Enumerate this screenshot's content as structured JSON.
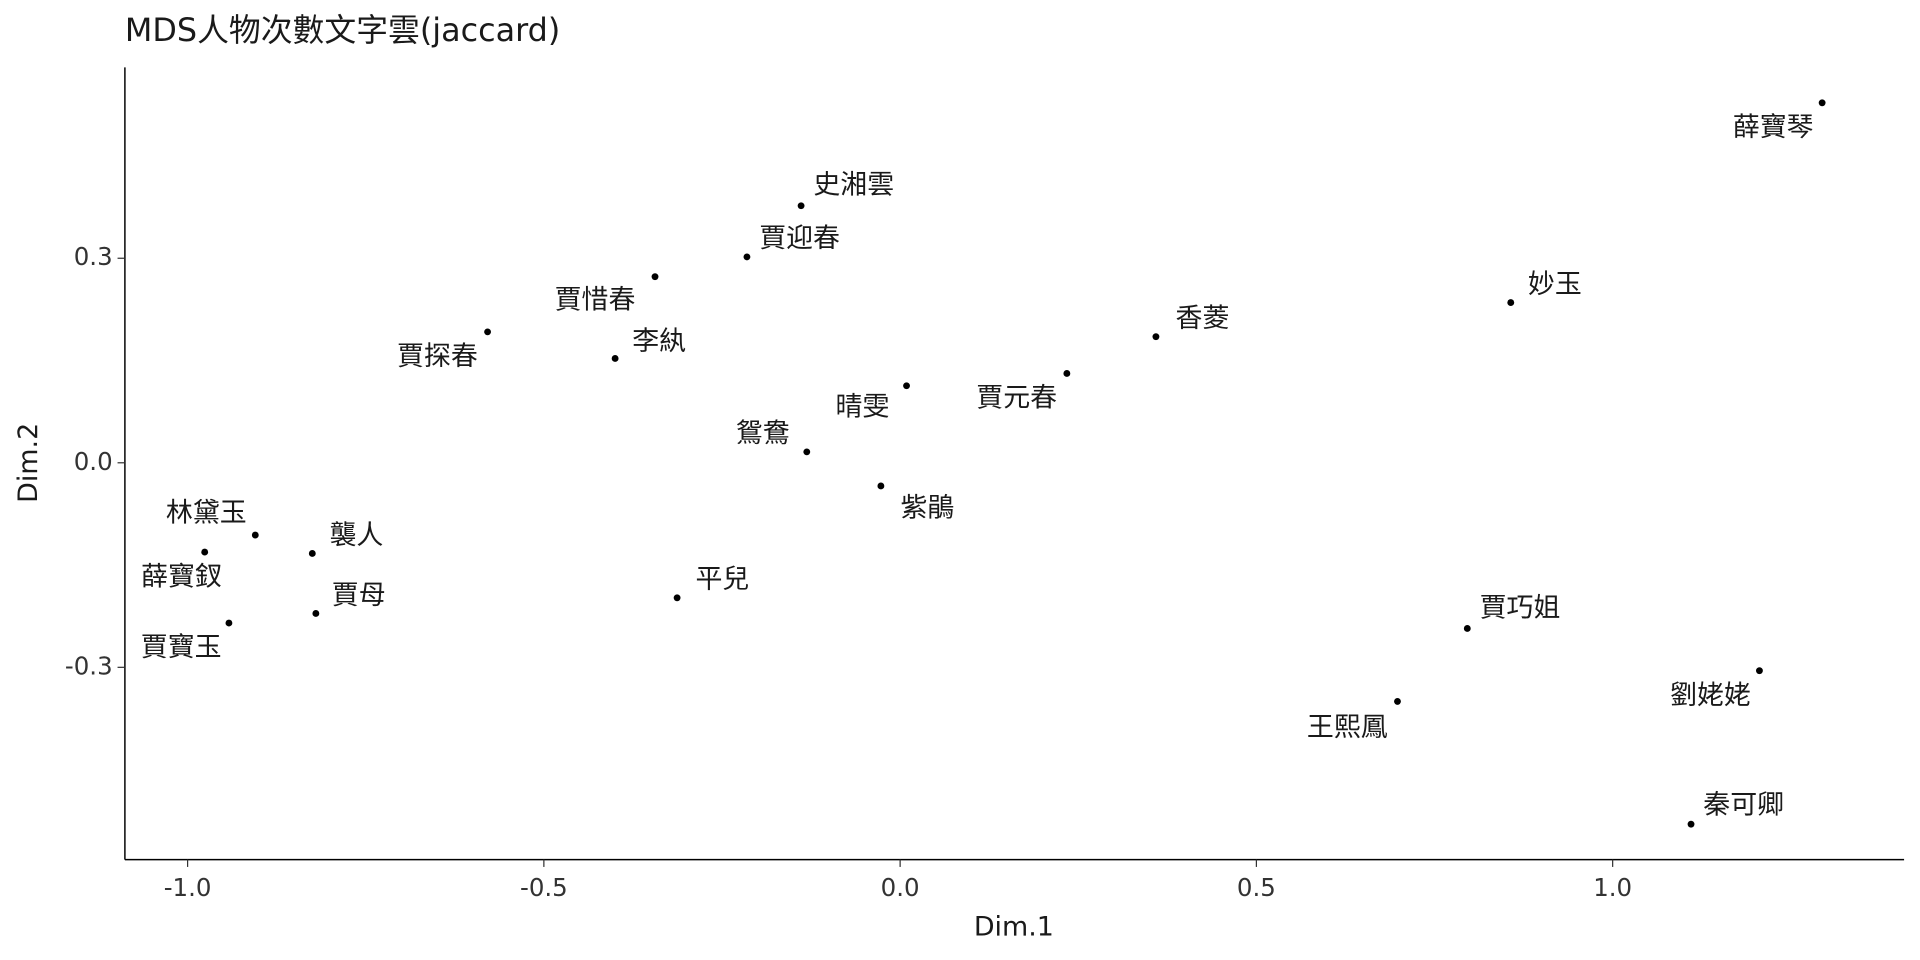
{
  "chart_data": {
    "type": "scatter",
    "title": "MDS人物次數文字雲(jaccard)",
    "x_label": "Dim.1",
    "y_label": "Dim.2",
    "color": "#000000",
    "labels": [
      "薛寶琴",
      "史湘雲",
      "賈迎春",
      "賈惜春",
      "妙玉",
      "賈探春",
      "香菱",
      "李紈",
      "賈元春",
      "晴雯",
      "鴛鴦",
      "紫鵑",
      "林黛玉",
      "襲人",
      "薛寶釵",
      "平兒",
      "賈母",
      "賈寶玉",
      "賈巧姐",
      "劉姥姥",
      "王熙鳳",
      "秦可卿"
    ],
    "x": [
      1.294,
      -0.139,
      -0.215,
      -0.344,
      0.857,
      -0.579,
      0.359,
      -0.4,
      0.234,
      0.009,
      -0.131,
      -0.027,
      -0.905,
      -0.825,
      -0.976,
      -0.313,
      -0.82,
      -0.942,
      0.796,
      1.206,
      0.698,
      1.11
    ],
    "values": [
      0.528,
      0.377,
      0.302,
      0.273,
      0.235,
      0.192,
      0.185,
      0.153,
      0.131,
      0.113,
      0.016,
      -0.034,
      -0.106,
      -0.133,
      -0.131,
      -0.198,
      -0.221,
      -0.235,
      -0.243,
      -0.305,
      -0.35,
      -0.53
    ],
    "xlim": [
      -1.088,
      1.409
    ],
    "ylim": [
      -0.582,
      0.58
    ],
    "xticks": [
      {
        "value": -1,
        "label": "-1.0"
      },
      -0.5,
      {
        "value": 0,
        "label": "0.0"
      },
      0.5,
      {
        "value": 1,
        "label": "1.0"
      }
    ],
    "yticks": [
      -0.3,
      {
        "value": 0,
        "label": "0.0"
      },
      0.3
    ]
  }
}
